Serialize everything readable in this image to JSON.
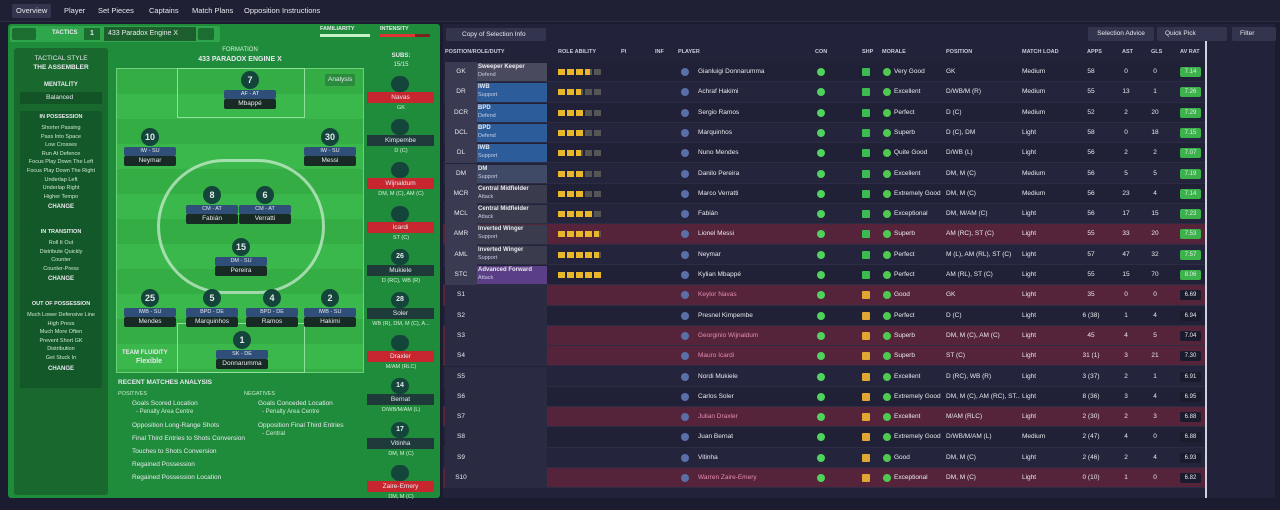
{
  "tabs": [
    "Overview",
    "Player",
    "Set Pieces",
    "Captains",
    "Match Plans",
    "Opposition Instructions"
  ],
  "tactics": {
    "label": "TACTICS",
    "number": "1",
    "name": "433 Paradox Engine X",
    "familiarity": "FAMILIARITY",
    "intensity": "INTENSITY"
  },
  "sidebar": {
    "style_title": "TACTICAL STYLE",
    "style": "THE ASSEMBLER",
    "mentality_title": "MENTALITY",
    "mentality": "Balanced",
    "phases": [
      {
        "title": "IN POSSESSION",
        "items": [
          "Shorter Passing",
          "Pass Into Space",
          "Low Crosses",
          "Run At Defence",
          "Focus Play Down The Left",
          "Focus Play Down The Right",
          "Underlap Left",
          "Underlap Right",
          "Higher Tempo"
        ],
        "button": "CHANGE"
      },
      {
        "title": "IN TRANSITION",
        "items": [
          "Roll It Out",
          "Distribute Quickly",
          "Counter",
          "Counter-Press"
        ],
        "button": "CHANGE"
      },
      {
        "title": "OUT OF POSSESSION",
        "items": [
          "Much Lower Defensive Line",
          "High Press",
          "Much More Often",
          "Prevent Short GK",
          "Distribution",
          "Get Stuck In"
        ],
        "button": "CHANGE"
      }
    ]
  },
  "formation": {
    "title": "FORMATION",
    "name": "433 PARADOX ENGINE X",
    "analysis": "Analysis",
    "players": [
      {
        "number": "7",
        "role": "AF - AT",
        "name": "Mbappé"
      },
      {
        "number": "10",
        "role": "IW - SU",
        "name": "Neymar"
      },
      {
        "number": "30",
        "role": "IW - SU",
        "name": "Messi"
      },
      {
        "number": "8",
        "role": "CM - AT",
        "name": "Fabián"
      },
      {
        "number": "6",
        "role": "CM - AT",
        "name": "Verratti"
      },
      {
        "number": "15",
        "role": "DM - SU",
        "name": "Pereira"
      },
      {
        "number": "25",
        "role": "IWB - SU",
        "name": "Mendes"
      },
      {
        "number": "5",
        "role": "BPD - DE",
        "name": "Marquinhos"
      },
      {
        "number": "4",
        "role": "BPD - DE",
        "name": "Ramos"
      },
      {
        "number": "2",
        "role": "IWB - SU",
        "name": "Hakimi"
      },
      {
        "number": "1",
        "role": "SK - DE",
        "name": "Donnarumma"
      }
    ],
    "fluidity_title": "TEAM FLUIDITY",
    "fluidity": "Flexible"
  },
  "subs": {
    "title": "SUBS:",
    "count": "15/15",
    "players": [
      {
        "name": "Navas",
        "position": "GK",
        "color": "#c8262e"
      },
      {
        "name": "Kimpembe",
        "position": "D (C)",
        "color": "#1e3b3a"
      },
      {
        "name": "Wijnaldum",
        "position": "DM, M (C), AM (C)",
        "color": "#c8262e"
      },
      {
        "name": "Icardi",
        "position": "ST (C)",
        "color": "#c8262e"
      },
      {
        "number": "26",
        "name": "Mukiele",
        "position": "D (RC), WB (R)",
        "color": "#1e3b3a"
      },
      {
        "number": "28",
        "name": "Soler",
        "position": "WB (R), DM, M (C), A...",
        "color": "#1e3b3a"
      },
      {
        "name": "Draxler",
        "position": "M/AM (RLC)",
        "color": "#c8262e"
      },
      {
        "number": "14",
        "name": "Bernat",
        "position": "D/WB/M/AM (L)",
        "color": "#1e3b3a"
      },
      {
        "number": "17",
        "name": "Vitinha",
        "position": "DM, M (C)",
        "color": "#1e3b3a"
      },
      {
        "name": "Zaire-Emery",
        "position": "DM, M (C)",
        "color": "#c8262e"
      }
    ]
  },
  "analysis": {
    "title": "RECENT MATCHES ANALYSIS",
    "positives_title": "POSITIVES",
    "positives": [
      {
        "text": "Goals Scored Location",
        "detail": "- Penalty Area Centre"
      },
      {
        "text": "Opposition Long-Range Shots"
      },
      {
        "text": "Final Third Entries to Shots Conversion"
      },
      {
        "text": "Touches to Shots Conversion"
      },
      {
        "text": "Regained Possession"
      },
      {
        "text": "Regained Possession Location"
      }
    ],
    "negatives_title": "NEGATIVES",
    "negatives": [
      {
        "text": "Goals Conceded Location",
        "detail": "- Penalty Area Centre"
      },
      {
        "text": "Opposition Final Third Entries",
        "detail": "- Central"
      }
    ]
  },
  "toolbar": {
    "view": "Copy of Selection Info",
    "selection_advice": "Selection Advice",
    "quick_pick": "Quick Pick",
    "filter": "Filter"
  },
  "table": {
    "headers": [
      "POSITION/ROLE/DUTY",
      "ROLE ABILITY",
      "PI",
      "INF",
      "PLAYER",
      "CON",
      "SHP",
      "MORALE",
      "POSITION",
      "MATCH LOAD",
      "APPS",
      "AST",
      "GLS",
      "AV RAT"
    ],
    "rows": [
      {
        "slot": "GK",
        "role": "Sweeper Keeper",
        "duty": "Defend",
        "role_color": "#4a4a5e",
        "stars": 3.5,
        "player": "Gianluigi Donnarumma",
        "morale": "Very Good",
        "position": "GK",
        "load": "Medium",
        "apps": "58",
        "ast": "0",
        "gls": "0",
        "rating": "7.14",
        "highlight": false
      },
      {
        "slot": "DR",
        "role": "IWB",
        "duty": "Support",
        "role_color": "#2c5d9a",
        "stars": 2.5,
        "player": "Achraf Hakimi",
        "morale": "Excellent",
        "position": "D/WB/M (R)",
        "load": "Medium",
        "apps": "55",
        "ast": "13",
        "gls": "1",
        "rating": "7.26",
        "highlight": false
      },
      {
        "slot": "DCR",
        "role": "BPD",
        "duty": "Defend",
        "role_color": "#2c5d9a",
        "stars": 3,
        "player": "Sergio Ramos",
        "morale": "Perfect",
        "position": "D (C)",
        "load": "Medium",
        "apps": "52",
        "ast": "2",
        "gls": "20",
        "rating": "7.29",
        "highlight": false
      },
      {
        "slot": "DCL",
        "role": "BPD",
        "duty": "Defend",
        "role_color": "#2c5d9a",
        "stars": 3,
        "player": "Marquinhos",
        "morale": "Superb",
        "position": "D (C), DM",
        "load": "Light",
        "apps": "58",
        "ast": "0",
        "gls": "18",
        "rating": "7.15",
        "highlight": false
      },
      {
        "slot": "DL",
        "role": "IWB",
        "duty": "Support",
        "role_color": "#2c5d9a",
        "stars": 2.5,
        "player": "Nuno Mendes",
        "morale": "Quite Good",
        "position": "D/WB (L)",
        "load": "Light",
        "apps": "56",
        "ast": "2",
        "gls": "2",
        "rating": "7.07",
        "highlight": false
      },
      {
        "slot": "DM",
        "role": "DM",
        "duty": "Support",
        "role_color": "#3f4a66",
        "stars": 3,
        "player": "Danilo Pereira",
        "morale": "Excellent",
        "position": "DM, M (C)",
        "load": "Medium",
        "apps": "56",
        "ast": "5",
        "gls": "5",
        "rating": "7.19",
        "highlight": false
      },
      {
        "slot": "MCR",
        "role": "Central Midfielder",
        "duty": "Attack",
        "role_color": "#3a3b4c",
        "stars": 3,
        "player": "Marco Verratti",
        "morale": "Extremely Good",
        "position": "DM, M (C)",
        "load": "Medium",
        "apps": "56",
        "ast": "23",
        "gls": "4",
        "rating": "7.14",
        "highlight": false
      },
      {
        "slot": "MCL",
        "role": "Central Midfielder",
        "duty": "Attack",
        "role_color": "#3a3b4c",
        "stars": 4,
        "player": "Fabián",
        "morale": "Exceptional",
        "position": "DM, M/AM (C)",
        "load": "Light",
        "apps": "56",
        "ast": "17",
        "gls": "15",
        "rating": "7.23",
        "highlight": false
      },
      {
        "slot": "AMR",
        "role": "Inverted Winger",
        "duty": "Support",
        "role_color": "#3a3b4c",
        "stars": 4.5,
        "player": "Lionel Messi",
        "morale": "Superb",
        "position": "AM (RC), ST (C)",
        "load": "Light",
        "apps": "55",
        "ast": "33",
        "gls": "20",
        "rating": "7.53",
        "highlight": true
      },
      {
        "slot": "AML",
        "role": "Inverted Winger",
        "duty": "Support",
        "role_color": "#3a3b4c",
        "stars": 4.5,
        "player": "Neymar",
        "morale": "Perfect",
        "position": "M (L), AM (RL), ST (C)",
        "load": "Light",
        "apps": "57",
        "ast": "47",
        "gls": "32",
        "rating": "7.57",
        "highlight": false
      },
      {
        "slot": "STC",
        "role": "Advanced Forward",
        "duty": "Attack",
        "role_color": "#5b3f86",
        "stars": 5,
        "player": "Kylian Mbappé",
        "morale": "Perfect",
        "position": "AM (RL), ST (C)",
        "load": "Light",
        "apps": "55",
        "ast": "15",
        "gls": "70",
        "rating": "8.06",
        "highlight": false
      },
      {
        "slot": "S1",
        "player": "Keylor Navas",
        "morale": "Good",
        "position": "GK",
        "load": "Light",
        "apps": "35",
        "ast": "0",
        "gls": "0",
        "rating": "6.69",
        "highlight": true
      },
      {
        "slot": "S2",
        "player": "Presnel Kimpembe",
        "morale": "Perfect",
        "position": "D (C)",
        "load": "Light",
        "apps": "6 (38)",
        "ast": "1",
        "gls": "4",
        "rating": "6.94",
        "highlight": false
      },
      {
        "slot": "S3",
        "player": "Georginio Wijnaldum",
        "morale": "Superb",
        "position": "DM, M (C), AM (C)",
        "load": "Light",
        "apps": "45",
        "ast": "4",
        "gls": "5",
        "rating": "7.04",
        "highlight": true
      },
      {
        "slot": "S4",
        "player": "Mauro Icardi",
        "morale": "Superb",
        "position": "ST (C)",
        "load": "Light",
        "apps": "31 (1)",
        "ast": "3",
        "gls": "21",
        "rating": "7.30",
        "highlight": true
      },
      {
        "slot": "S5",
        "player": "Nordi Mukiele",
        "morale": "Excellent",
        "position": "D (RC), WB (R)",
        "load": "Light",
        "apps": "3 (37)",
        "ast": "2",
        "gls": "1",
        "rating": "6.91",
        "highlight": false
      },
      {
        "slot": "S6",
        "player": "Carlos Soler",
        "morale": "Extremely Good",
        "position": "DM, M (C), AM (RC), ST...",
        "load": "Light",
        "apps": "8 (36)",
        "ast": "3",
        "gls": "4",
        "rating": "6.95",
        "highlight": false
      },
      {
        "slot": "S7",
        "player": "Julian Draxler",
        "morale": "Excellent",
        "position": "M/AM (RLC)",
        "load": "Light",
        "apps": "2 (30)",
        "ast": "2",
        "gls": "3",
        "rating": "6.88",
        "highlight": true
      },
      {
        "slot": "S8",
        "player": "Juan Bernat",
        "morale": "Extremely Good",
        "position": "D/WB/M/AM (L)",
        "load": "Medium",
        "apps": "2 (47)",
        "ast": "4",
        "gls": "0",
        "rating": "6.88",
        "highlight": false
      },
      {
        "slot": "S9",
        "player": "Vitinha",
        "morale": "Good",
        "position": "DM, M (C)",
        "load": "Light",
        "apps": "2 (46)",
        "ast": "2",
        "gls": "4",
        "rating": "6.93",
        "highlight": false
      },
      {
        "slot": "S10",
        "player": "Warren Zaire-Emery",
        "morale": "Exceptional",
        "position": "DM, M (C)",
        "load": "Light",
        "apps": "0 (10)",
        "ast": "1",
        "gls": "0",
        "rating": "6.82",
        "highlight": true
      }
    ]
  }
}
